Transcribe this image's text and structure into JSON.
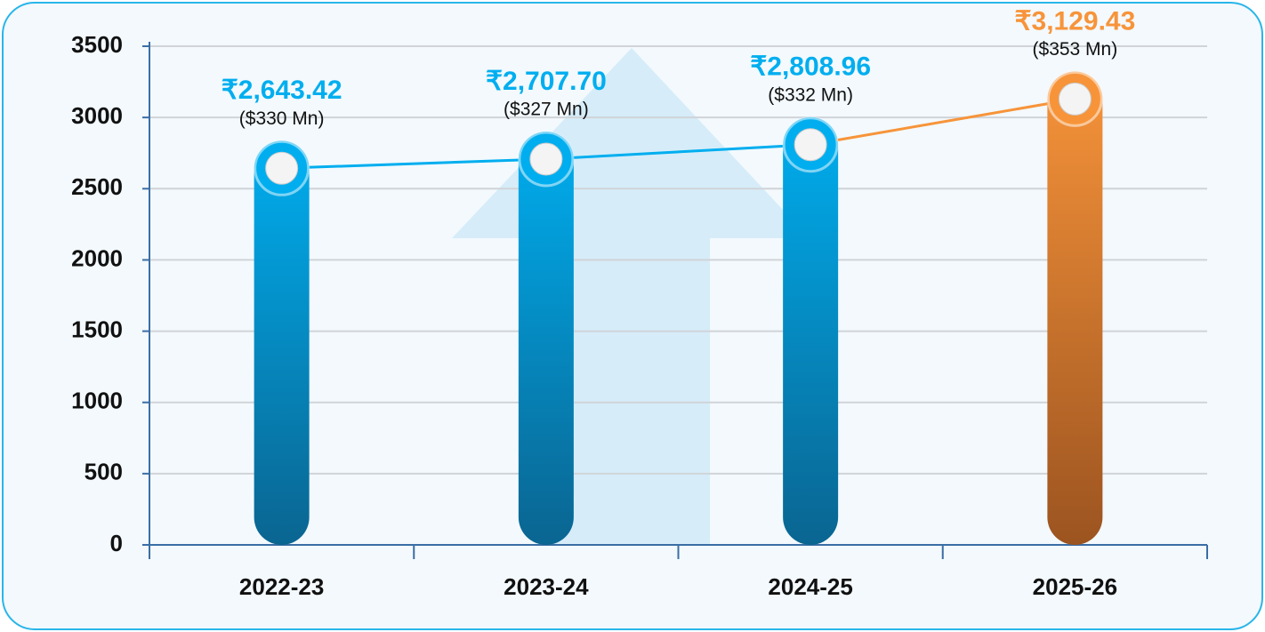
{
  "chart_data": {
    "type": "bar",
    "categories": [
      "2022-23",
      "2023-24",
      "2024-25",
      "2025-26"
    ],
    "values": [
      2643.42,
      2707.7,
      2808.96,
      3129.43
    ],
    "value_labels": [
      "₹2,643.42",
      "₹2,707.70",
      "₹2,808.96",
      "₹3,129.43"
    ],
    "secondary_labels": [
      "($330 Mn)",
      "($327 Mn)",
      "($332 Mn)",
      "($353 Mn)"
    ],
    "colors": [
      "#00aeef",
      "#00aeef",
      "#00aeef",
      "#f7943a"
    ],
    "ylim": [
      0,
      3500
    ],
    "yticks": [
      0,
      500,
      1000,
      1500,
      2000,
      2500,
      3000,
      3500
    ],
    "grid": true
  }
}
